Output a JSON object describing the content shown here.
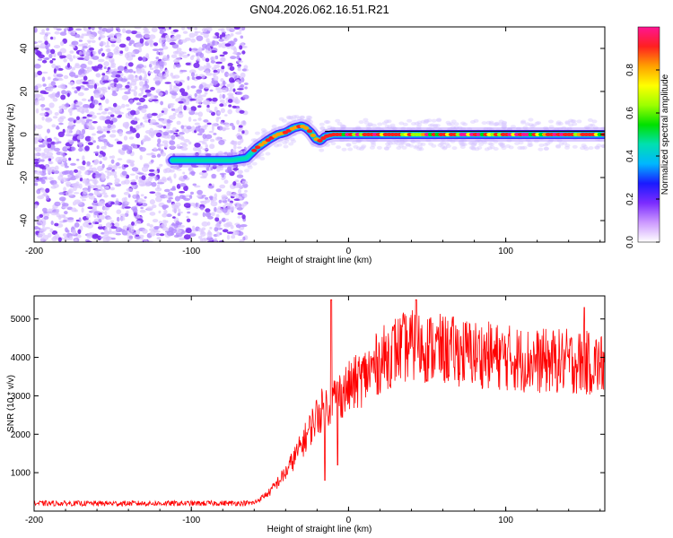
{
  "chart_data": [
    {
      "type": "heatmap",
      "title": "GN04.2026.062.16.51.R21",
      "xlabel": "Height of straight line (km)",
      "ylabel": "Frequency (Hz)",
      "xlim": [
        -200,
        163
      ],
      "ylim": [
        -50,
        50
      ],
      "xticks": [
        -200,
        -100,
        0,
        100
      ],
      "yticks": [
        -40,
        -20,
        0,
        20,
        40
      ],
      "colorbar": {
        "label": "Normalized spectral amplitude",
        "range": [
          0,
          1
        ],
        "ticks": [
          0.0,
          0.2,
          0.4,
          0.6,
          0.8
        ],
        "colors": [
          "#ffffff",
          "#cc99ff",
          "#7b2cff",
          "#1a1aff",
          "#00b7ff",
          "#00e0b0",
          "#00e000",
          "#9cff00",
          "#ffff00",
          "#ffa000",
          "#ff2020",
          "#ff1493"
        ]
      },
      "noise_region": [
        -200,
        -65
      ],
      "ridge_x": [
        -110,
        -90,
        -75,
        -65,
        -58,
        -50,
        -45,
        -40,
        -35,
        -30,
        -27,
        -24,
        -21,
        -18,
        -15,
        -10,
        0,
        10,
        30,
        60,
        100,
        140,
        163
      ],
      "ridge_y": [
        -12,
        -12,
        -12,
        -11,
        -6,
        -2,
        0,
        1,
        3,
        4,
        3,
        1,
        -2,
        -3,
        -1,
        0,
        0,
        0,
        0,
        0,
        0,
        0,
        0
      ],
      "flat_line_y": 1.5
    },
    {
      "type": "line",
      "title": "",
      "xlabel": "Height of straight line (km)",
      "ylabel": "SNR (10 * v/v)",
      "xlim": [
        -200,
        163
      ],
      "ylim": [
        0,
        5600
      ],
      "xticks": [
        -200,
        -100,
        0,
        100
      ],
      "yticks": [
        1000,
        2000,
        3000,
        4000,
        5000
      ],
      "series_color": "#ff0000",
      "envelope": {
        "x": [
          -200,
          -100,
          -60,
          -50,
          -40,
          -30,
          -20,
          -10,
          0,
          10,
          20,
          30,
          40,
          60,
          80,
          100,
          120,
          140,
          163
        ],
        "y": [
          200,
          200,
          210,
          500,
          1000,
          1700,
          2500,
          2900,
          3200,
          3500,
          3900,
          4200,
          4300,
          4200,
          4100,
          4000,
          3900,
          3900,
          3800
        ]
      },
      "spikes": [
        {
          "x": -11,
          "y": 5500
        },
        {
          "x": -7,
          "y": 1200
        },
        {
          "x": -15,
          "y": 800
        },
        {
          "x": 43,
          "y": 5500
        },
        {
          "x": 150,
          "y": 5300
        }
      ]
    }
  ]
}
